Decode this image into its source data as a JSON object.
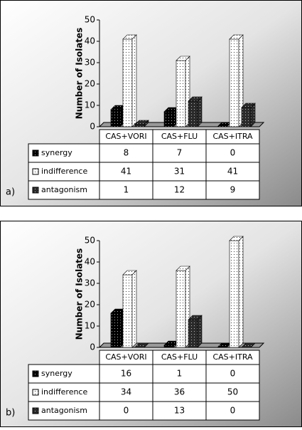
{
  "chart_data": [
    {
      "type": "bar",
      "panel_label": "a)",
      "y_label": "Number of Isolates",
      "categories": [
        "CAS+VORI",
        "CAS+FLU",
        "CAS+ITRA"
      ],
      "series": [
        {
          "name": "synergy",
          "color": "#000000",
          "values": [
            8,
            7,
            0
          ]
        },
        {
          "name": "indifference",
          "color": "#ffffff",
          "values": [
            41,
            31,
            41
          ]
        },
        {
          "name": "antagonism",
          "color": "#2a2a2a",
          "values": [
            1,
            12,
            9
          ]
        }
      ],
      "ylim": [
        0,
        50
      ],
      "yticks": [
        0,
        10,
        20,
        30,
        40,
        50
      ]
    },
    {
      "type": "bar",
      "panel_label": "b)",
      "y_label": "Number of Isolates",
      "categories": [
        "CAS+VORI",
        "CAS+FLU",
        "CAS+ITRA"
      ],
      "series": [
        {
          "name": "synergy",
          "color": "#000000",
          "values": [
            16,
            1,
            0
          ]
        },
        {
          "name": "indifference",
          "color": "#ffffff",
          "values": [
            34,
            36,
            50
          ]
        },
        {
          "name": "antagonism",
          "color": "#2a2a2a",
          "values": [
            0,
            13,
            0
          ]
        }
      ],
      "ylim": [
        0,
        50
      ],
      "yticks": [
        0,
        10,
        20,
        30,
        40,
        50
      ]
    }
  ]
}
